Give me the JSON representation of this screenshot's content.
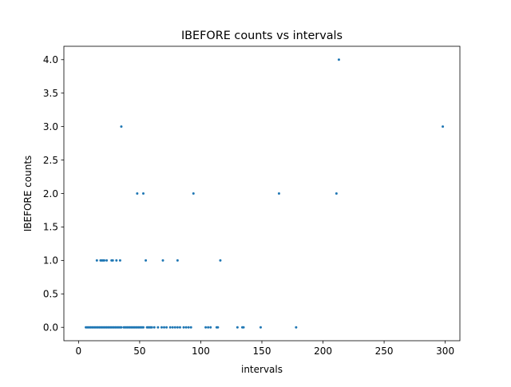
{
  "chart_data": {
    "type": "scatter",
    "title": "IBEFORE counts vs intervals",
    "xlabel": "intervals",
    "ylabel": "IBEFORE counts",
    "xlim": [
      -12,
      312
    ],
    "ylim": [
      -0.2,
      4.2
    ],
    "x_ticks": [
      0,
      50,
      100,
      150,
      200,
      250,
      300
    ],
    "y_ticks": [
      0.0,
      0.5,
      1.0,
      1.5,
      2.0,
      2.5,
      3.0,
      3.5,
      4.0
    ],
    "x_tick_labels": [
      "0",
      "50",
      "100",
      "150",
      "200",
      "250",
      "300"
    ],
    "y_tick_labels": [
      "0.0",
      "0.5",
      "1.0",
      "1.5",
      "2.0",
      "2.5",
      "3.0",
      "3.5",
      "4.0"
    ],
    "grid": false,
    "marker_color": "#1f77b4",
    "series": [
      {
        "points": [
          [
            6,
            0
          ],
          [
            7,
            0
          ],
          [
            8,
            0
          ],
          [
            9,
            0
          ],
          [
            10,
            0
          ],
          [
            11,
            0
          ],
          [
            12,
            0
          ],
          [
            13,
            0
          ],
          [
            14,
            0
          ],
          [
            15,
            0
          ],
          [
            16,
            0
          ],
          [
            17,
            0
          ],
          [
            18,
            0
          ],
          [
            19,
            0
          ],
          [
            20,
            0
          ],
          [
            21,
            0
          ],
          [
            22,
            0
          ],
          [
            23,
            0
          ],
          [
            24,
            0
          ],
          [
            25,
            0
          ],
          [
            26,
            0
          ],
          [
            27,
            0
          ],
          [
            28,
            0
          ],
          [
            29,
            0
          ],
          [
            30,
            0
          ],
          [
            31,
            0
          ],
          [
            32,
            0
          ],
          [
            33,
            0
          ],
          [
            34,
            0
          ],
          [
            35,
            0
          ],
          [
            37,
            0
          ],
          [
            38,
            0
          ],
          [
            39,
            0
          ],
          [
            40,
            0
          ],
          [
            41,
            0
          ],
          [
            42,
            0
          ],
          [
            43,
            0
          ],
          [
            44,
            0
          ],
          [
            45,
            0
          ],
          [
            46,
            0
          ],
          [
            47,
            0
          ],
          [
            48,
            0
          ],
          [
            49,
            0
          ],
          [
            50,
            0
          ],
          [
            51,
            0
          ],
          [
            52,
            0
          ],
          [
            53,
            0
          ],
          [
            56,
            0
          ],
          [
            57,
            0
          ],
          [
            58,
            0
          ],
          [
            59,
            0
          ],
          [
            60,
            0
          ],
          [
            62,
            0
          ],
          [
            65,
            0
          ],
          [
            68,
            0
          ],
          [
            70,
            0
          ],
          [
            72,
            0
          ],
          [
            75,
            0
          ],
          [
            77,
            0
          ],
          [
            79,
            0
          ],
          [
            81,
            0
          ],
          [
            83,
            0
          ],
          [
            86,
            0
          ],
          [
            88,
            0
          ],
          [
            90,
            0
          ],
          [
            92,
            0
          ],
          [
            104,
            0
          ],
          [
            106,
            0
          ],
          [
            108,
            0
          ],
          [
            113,
            0
          ],
          [
            114,
            0
          ],
          [
            130,
            0
          ],
          [
            134,
            0
          ],
          [
            135,
            0
          ],
          [
            149,
            0
          ],
          [
            178,
            0
          ],
          [
            15,
            1
          ],
          [
            18,
            1
          ],
          [
            19,
            1
          ],
          [
            20,
            1
          ],
          [
            21,
            1
          ],
          [
            23,
            1
          ],
          [
            27,
            1
          ],
          [
            28,
            1
          ],
          [
            31,
            1
          ],
          [
            34,
            1
          ],
          [
            55,
            1
          ],
          [
            69,
            1
          ],
          [
            81,
            1
          ],
          [
            116,
            1
          ],
          [
            48,
            2
          ],
          [
            53,
            2
          ],
          [
            94,
            2
          ],
          [
            164,
            2
          ],
          [
            211,
            2
          ],
          [
            35,
            3
          ],
          [
            298,
            3
          ],
          [
            213,
            4
          ]
        ]
      }
    ]
  }
}
